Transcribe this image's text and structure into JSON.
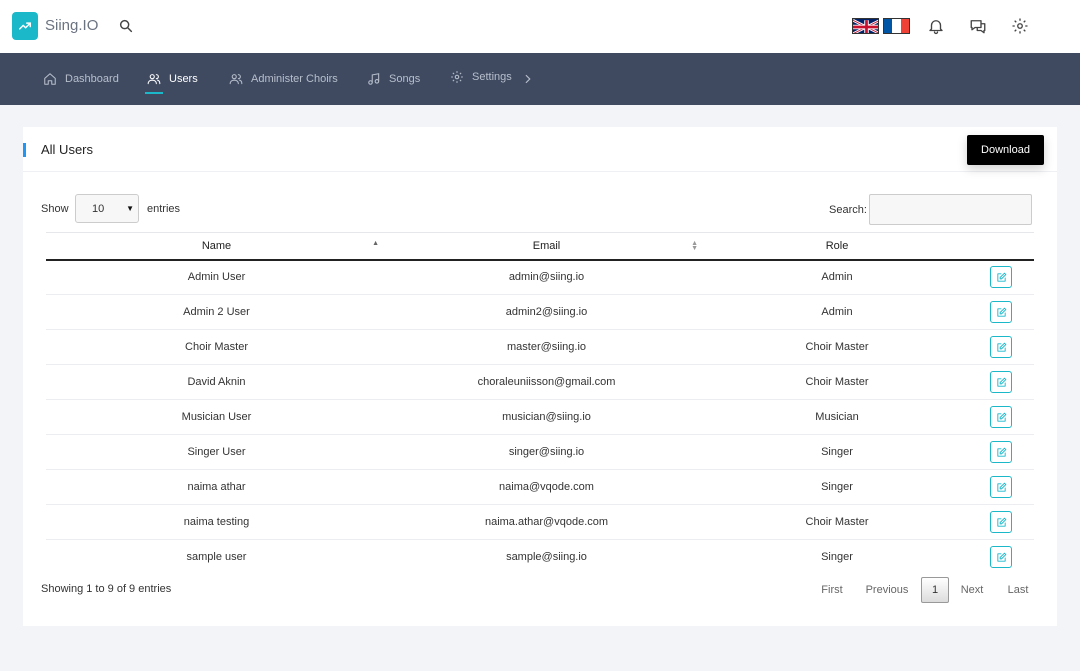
{
  "app": {
    "title": "Siing.IO"
  },
  "header": {
    "icons": [
      "trending-up-icon",
      "search-icon",
      "uk-flag-icon",
      "france-flag-icon",
      "bell-icon",
      "chat-icon",
      "gear-icon"
    ]
  },
  "nav": {
    "items": [
      {
        "label": "Dashboard",
        "icon": "home-icon"
      },
      {
        "label": "Users",
        "icon": "users-icon",
        "active": true
      },
      {
        "label": "Administer Choirs",
        "icon": "users-icon"
      },
      {
        "label": "Songs",
        "icon": "music-note-icon"
      },
      {
        "label": "Settings",
        "icon": "gear-icon"
      }
    ],
    "more_icon": "chevron-right-icon"
  },
  "card": {
    "title": "All Users",
    "download_label": "Download"
  },
  "controls": {
    "show_label": "Show",
    "length_value": "10",
    "entries_label": "entries",
    "search_label": "Search:",
    "search_value": ""
  },
  "table": {
    "columns": [
      "Name",
      "Email",
      "Role"
    ],
    "rows": [
      {
        "name": "Admin User",
        "email": "admin@siing.io",
        "role": "Admin"
      },
      {
        "name": "Admin 2 User",
        "email": "admin2@siing.io",
        "role": "Admin"
      },
      {
        "name": "Choir Master",
        "email": "master@siing.io",
        "role": "Choir Master"
      },
      {
        "name": "David Aknin",
        "email": "choraleuniisson@gmail.com",
        "role": "Choir Master"
      },
      {
        "name": "Musician User",
        "email": "musician@siing.io",
        "role": "Musician"
      },
      {
        "name": "Singer User",
        "email": "singer@siing.io",
        "role": "Singer"
      },
      {
        "name": "naima athar",
        "email": "naima@vqode.com",
        "role": "Singer"
      },
      {
        "name": "naima testing",
        "email": "naima.athar@vqode.com",
        "role": "Choir Master"
      },
      {
        "name": "sample user",
        "email": "sample@siing.io",
        "role": "Singer"
      }
    ]
  },
  "footer": {
    "info": "Showing 1 to 9 of 9 entries",
    "first": "First",
    "previous": "Previous",
    "current_page": "1",
    "next": "Next",
    "last": "Last"
  },
  "colors": {
    "accent": "#1bb8c9",
    "nav_bg": "#3f4a61",
    "card_accent": "#2196f3"
  }
}
